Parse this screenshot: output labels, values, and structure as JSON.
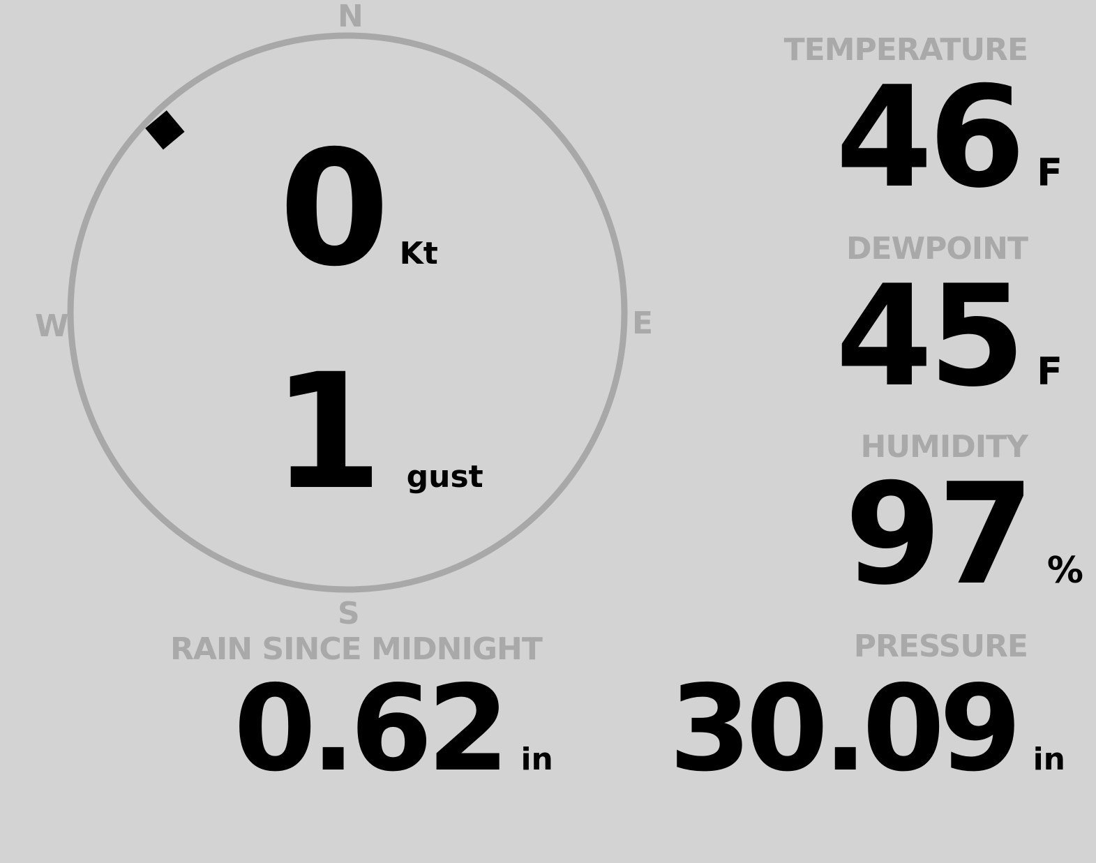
{
  "wind": {
    "speed": "0",
    "speed_unit": "Kt",
    "gust": "1",
    "gust_unit": "gust",
    "direction_deg": 315,
    "compass": {
      "n": "N",
      "e": "E",
      "s": "S",
      "w": "W"
    }
  },
  "temperature": {
    "label": "TEMPERATURE",
    "value": "46",
    "unit": "F"
  },
  "dewpoint": {
    "label": "DEWPOINT",
    "value": "45",
    "unit": "F"
  },
  "humidity": {
    "label": "HUMIDITY",
    "value": "97",
    "unit": "%"
  },
  "rain": {
    "label": "RAIN SINCE MIDNIGHT",
    "value": "0.62",
    "unit": "in"
  },
  "pressure": {
    "label": "PRESSURE",
    "value": "30.09",
    "unit": "in"
  },
  "colors": {
    "background": "#d3d3d3",
    "label": "#a9a9a9",
    "ring": "#a8a8a8",
    "value": "#000000"
  }
}
